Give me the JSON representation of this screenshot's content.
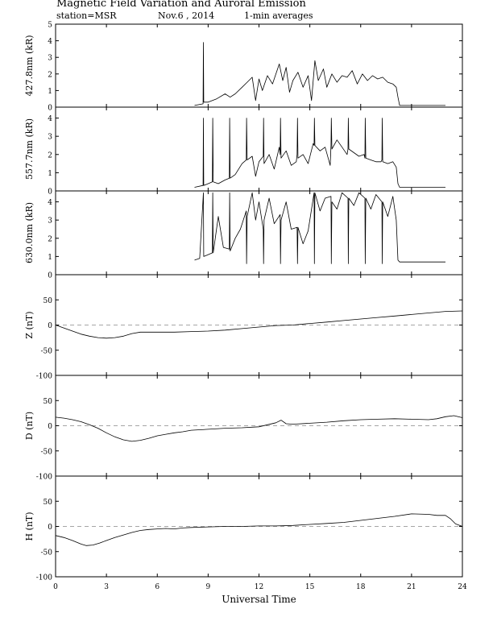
{
  "header": {
    "title": "Magnetic Field Variation and Auroral Emission",
    "station": "station=MSR",
    "date": "Nov.6  , 2014",
    "averages": "1-min averages"
  },
  "chart_data": [
    {
      "type": "line",
      "ylabel": "427.8nm (kR)",
      "ylim": [
        0,
        5
      ],
      "yticks": [
        "0",
        "1",
        "2",
        "3",
        "4",
        "5"
      ],
      "series": [
        {
          "x": [
            8.2,
            8.7,
            8.72,
            8.74,
            9.0,
            9.5,
            10.0,
            10.3,
            10.6,
            11.0,
            11.3,
            11.6,
            11.8,
            12.0,
            12.2,
            12.5,
            12.8,
            13.0,
            13.2,
            13.4,
            13.6,
            13.8,
            14.0,
            14.3,
            14.6,
            14.9,
            15.1,
            15.3,
            15.5,
            15.8,
            16.0,
            16.3,
            16.6,
            16.9,
            17.2,
            17.5,
            17.8,
            18.1,
            18.4,
            18.7,
            19.0,
            19.3,
            19.6,
            19.9,
            20.1,
            20.2,
            20.3,
            21.0,
            22.0,
            23.0
          ],
          "y": [
            0.1,
            0.2,
            3.9,
            0.3,
            0.3,
            0.5,
            0.8,
            0.6,
            0.8,
            1.2,
            1.5,
            1.8,
            0.4,
            1.7,
            1.0,
            1.9,
            1.4,
            2.0,
            2.6,
            1.6,
            2.4,
            0.9,
            1.6,
            2.1,
            1.2,
            1.9,
            0.4,
            2.8,
            1.6,
            2.3,
            1.2,
            2.0,
            1.5,
            1.9,
            1.8,
            2.2,
            1.4,
            2.0,
            1.6,
            1.9,
            1.7,
            1.8,
            1.5,
            1.4,
            1.2,
            0.6,
            0.1,
            0.1,
            0.1,
            0.1
          ]
        }
      ]
    },
    {
      "type": "line",
      "ylabel": "557.7nm (kR)",
      "ylim": [
        0,
        4.6
      ],
      "yticks": [
        "0",
        "1",
        "2",
        "3",
        "4"
      ],
      "series": [
        {
          "x": [
            8.2,
            8.7,
            8.72,
            8.74,
            9.0,
            9.25,
            9.27,
            9.3,
            9.6,
            10.0,
            10.25,
            10.27,
            10.3,
            10.6,
            11.0,
            11.25,
            11.27,
            11.3,
            11.6,
            11.8,
            12.0,
            12.25,
            12.27,
            12.3,
            12.6,
            12.9,
            13.2,
            13.25,
            13.27,
            13.3,
            13.6,
            13.9,
            14.2,
            14.25,
            14.27,
            14.3,
            14.6,
            14.9,
            15.2,
            15.25,
            15.27,
            15.3,
            15.6,
            15.9,
            16.2,
            16.25,
            16.27,
            16.3,
            16.6,
            16.9,
            17.2,
            17.25,
            17.27,
            17.3,
            17.6,
            17.9,
            18.2,
            18.25,
            18.27,
            18.3,
            18.6,
            18.9,
            19.2,
            19.25,
            19.27,
            19.3,
            19.6,
            19.9,
            20.1,
            20.2,
            20.3,
            21.0,
            22.0,
            23.0
          ],
          "y": [
            0.2,
            0.3,
            4.0,
            0.3,
            0.4,
            0.5,
            4.0,
            0.5,
            0.4,
            0.6,
            0.7,
            4.0,
            0.7,
            0.9,
            1.5,
            1.7,
            4.0,
            1.7,
            1.9,
            0.8,
            1.6,
            1.9,
            4.0,
            1.5,
            2.0,
            1.2,
            2.4,
            2.0,
            4.0,
            1.8,
            2.2,
            1.4,
            1.6,
            2.0,
            4.0,
            1.8,
            2.0,
            1.5,
            2.6,
            2.5,
            4.0,
            2.5,
            2.2,
            2.4,
            1.4,
            2.5,
            4.0,
            2.3,
            2.8,
            2.4,
            2.0,
            2.3,
            4.0,
            2.3,
            2.1,
            1.9,
            2.0,
            1.8,
            4.0,
            1.8,
            1.7,
            1.6,
            1.6,
            1.7,
            4.0,
            1.6,
            1.5,
            1.6,
            1.3,
            0.4,
            0.2,
            0.2,
            0.2,
            0.2
          ]
        }
      ]
    },
    {
      "type": "line",
      "ylabel": "630.0nm (kR)",
      "ylim": [
        0,
        4.6
      ],
      "yticks": [
        "0",
        "1",
        "2",
        "3",
        "4"
      ],
      "series": [
        {
          "x": [
            8.2,
            8.5,
            8.72,
            8.74,
            9.0,
            9.25,
            9.27,
            9.3,
            9.6,
            9.9,
            10.25,
            10.27,
            10.3,
            10.6,
            10.9,
            11.25,
            11.27,
            11.3,
            11.6,
            11.8,
            12.0,
            12.25,
            12.27,
            12.3,
            12.6,
            12.9,
            13.25,
            13.27,
            13.3,
            13.6,
            13.9,
            14.25,
            14.27,
            14.3,
            14.6,
            14.9,
            15.25,
            15.27,
            15.3,
            15.6,
            15.9,
            16.25,
            16.27,
            16.3,
            16.6,
            16.9,
            17.25,
            17.27,
            17.3,
            17.6,
            17.9,
            18.25,
            18.27,
            18.3,
            18.6,
            18.9,
            19.25,
            19.27,
            19.3,
            19.6,
            19.9,
            20.1,
            20.2,
            20.3,
            21.0,
            22.0,
            23.0
          ],
          "y": [
            0.8,
            0.9,
            4.5,
            1.0,
            1.1,
            1.2,
            4.5,
            1.2,
            3.2,
            1.5,
            1.4,
            4.5,
            1.3,
            2.0,
            2.5,
            3.5,
            0.6,
            3.2,
            4.5,
            3.0,
            4.0,
            2.5,
            0.6,
            3.0,
            4.2,
            2.8,
            3.3,
            0.6,
            3.0,
            4.0,
            2.5,
            2.6,
            0.6,
            2.6,
            1.7,
            2.4,
            4.5,
            0.6,
            4.5,
            3.5,
            4.2,
            4.3,
            0.6,
            4.0,
            3.6,
            4.5,
            4.2,
            0.6,
            4.2,
            3.8,
            4.5,
            4.2,
            0.6,
            4.2,
            3.6,
            4.4,
            4.0,
            0.6,
            4.0,
            3.2,
            4.3,
            3.0,
            0.8,
            0.7,
            0.7,
            0.7,
            0.7
          ]
        }
      ]
    },
    {
      "type": "line",
      "ylabel": "Z (nT)",
      "ylim": [
        -100,
        100
      ],
      "yticks": [
        "-100",
        "-50",
        "0",
        "50"
      ],
      "series": [
        {
          "x": [
            0,
            0.5,
            1,
            1.5,
            2,
            2.5,
            3,
            3.5,
            4,
            4.5,
            5,
            6,
            7,
            8,
            9,
            10,
            11,
            12,
            13,
            14,
            15,
            16,
            17,
            18,
            19,
            20,
            21,
            22,
            23,
            24
          ],
          "y": [
            0,
            -6,
            -12,
            -18,
            -22,
            -25,
            -26,
            -25,
            -22,
            -17,
            -14,
            -14,
            -14,
            -13,
            -12,
            -10,
            -7,
            -4,
            -1,
            0,
            3,
            6,
            9,
            12,
            15,
            18,
            21,
            24,
            27,
            28
          ]
        }
      ]
    },
    {
      "type": "line",
      "ylabel": "D (nT)",
      "ylim": [
        -100,
        100
      ],
      "yticks": [
        "-100",
        "-50",
        "0",
        "50"
      ],
      "series": [
        {
          "x": [
            0,
            0.5,
            1,
            1.5,
            2,
            2.5,
            3,
            3.5,
            4,
            4.5,
            5,
            5.5,
            6,
            6.5,
            7,
            7.5,
            8,
            8.5,
            9,
            10,
            11,
            12,
            12.5,
            13,
            13.3,
            13.6,
            14,
            15,
            16,
            17,
            18,
            19,
            20,
            21,
            22,
            22.5,
            23,
            23.5,
            24
          ],
          "y": [
            17,
            15,
            12,
            8,
            2,
            -5,
            -14,
            -22,
            -28,
            -31,
            -29,
            -25,
            -20,
            -17,
            -14,
            -12,
            -9,
            -8,
            -7,
            -5,
            -4,
            -2,
            2,
            6,
            11,
            4,
            3,
            5,
            7,
            10,
            12,
            13,
            14,
            13,
            12,
            14,
            18,
            20,
            16
          ]
        }
      ]
    },
    {
      "type": "line",
      "ylabel": "H (nT)",
      "ylim": [
        -100,
        100
      ],
      "yticks": [
        "-100",
        "-50",
        "0",
        "50"
      ],
      "series": [
        {
          "x": [
            0,
            0.5,
            1,
            1.5,
            1.8,
            2.2,
            2.6,
            3,
            3.5,
            4,
            4.5,
            5,
            5.5,
            6,
            6.5,
            7,
            7.5,
            8,
            9,
            10,
            11,
            12,
            13,
            14,
            15,
            16,
            17,
            18,
            19,
            20,
            21,
            22,
            22.5,
            23,
            23.3,
            23.6,
            24
          ],
          "y": [
            -18,
            -22,
            -28,
            -35,
            -38,
            -37,
            -33,
            -28,
            -22,
            -17,
            -12,
            -8,
            -6,
            -5,
            -4,
            -5,
            -3,
            -2,
            -1,
            0,
            0,
            1,
            1,
            2,
            4,
            6,
            8,
            12,
            16,
            20,
            25,
            24,
            22,
            22,
            15,
            5,
            0
          ]
        }
      ]
    }
  ],
  "x_axis": {
    "label": "Universal Time",
    "xlim": [
      0,
      24
    ],
    "ticks": [
      "0",
      "3",
      "6",
      "9",
      "12",
      "15",
      "18",
      "21",
      "24"
    ]
  }
}
